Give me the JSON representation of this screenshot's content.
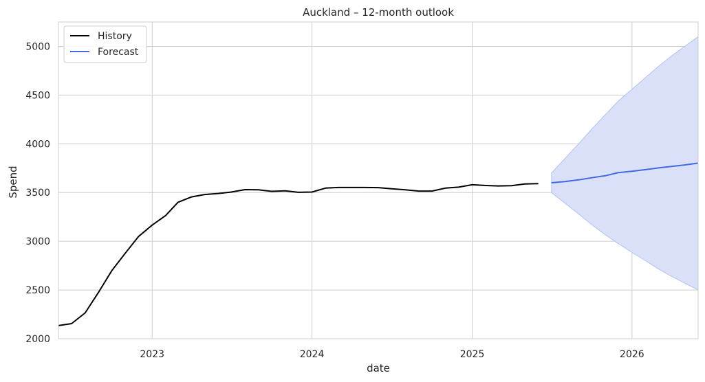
{
  "chart_data": {
    "type": "line",
    "title": "Auckland – 12-month outlook",
    "xlabel": "date",
    "ylabel": "Spend",
    "xlim": [
      "2022-06-01",
      "2026-06-01"
    ],
    "ylim": [
      2000,
      5250
    ],
    "x_ticks": [
      {
        "date": "2023-01-01",
        "label": "2023"
      },
      {
        "date": "2024-01-01",
        "label": "2024"
      },
      {
        "date": "2025-01-01",
        "label": "2025"
      },
      {
        "date": "2026-01-01",
        "label": "2026"
      }
    ],
    "y_ticks": [
      2000,
      2500,
      3000,
      3500,
      4000,
      4500,
      5000
    ],
    "grid": true,
    "legend_position": "top-left",
    "colors": {
      "history": "#000000",
      "forecast": "#4169e1",
      "band_fill": "#d9e0f8",
      "band_edge": "#b3c1f0",
      "grid": "#cccccc",
      "frame": "#cccccc"
    },
    "series": [
      {
        "name": "History",
        "points": [
          [
            "2022-06-01",
            2135
          ],
          [
            "2022-07-01",
            2155
          ],
          [
            "2022-08-01",
            2265
          ],
          [
            "2022-09-01",
            2480
          ],
          [
            "2022-10-01",
            2700
          ],
          [
            "2022-11-01",
            2880
          ],
          [
            "2022-12-01",
            3050
          ],
          [
            "2023-01-01",
            3165
          ],
          [
            "2023-02-01",
            3265
          ],
          [
            "2023-03-01",
            3400
          ],
          [
            "2023-04-01",
            3455
          ],
          [
            "2023-05-01",
            3480
          ],
          [
            "2023-06-01",
            3490
          ],
          [
            "2023-07-01",
            3505
          ],
          [
            "2023-08-01",
            3530
          ],
          [
            "2023-09-01",
            3528
          ],
          [
            "2023-10-01",
            3512
          ],
          [
            "2023-11-01",
            3518
          ],
          [
            "2023-12-01",
            3502
          ],
          [
            "2024-01-01",
            3505
          ],
          [
            "2024-02-01",
            3545
          ],
          [
            "2024-03-01",
            3552
          ],
          [
            "2024-04-01",
            3552
          ],
          [
            "2024-05-01",
            3552
          ],
          [
            "2024-06-01",
            3550
          ],
          [
            "2024-07-01",
            3538
          ],
          [
            "2024-08-01",
            3528
          ],
          [
            "2024-09-01",
            3515
          ],
          [
            "2024-10-01",
            3515
          ],
          [
            "2024-11-01",
            3545
          ],
          [
            "2024-12-01",
            3555
          ],
          [
            "2025-01-01",
            3580
          ],
          [
            "2025-02-01",
            3572
          ],
          [
            "2025-03-01",
            3568
          ],
          [
            "2025-04-01",
            3570
          ],
          [
            "2025-05-01",
            3588
          ],
          [
            "2025-06-01",
            3592
          ]
        ]
      },
      {
        "name": "Forecast",
        "points": [
          [
            "2025-07-01",
            3600
          ],
          [
            "2025-08-01",
            3612
          ],
          [
            "2025-09-01",
            3630
          ],
          [
            "2025-10-01",
            3652
          ],
          [
            "2025-11-01",
            3672
          ],
          [
            "2025-12-01",
            3705
          ],
          [
            "2026-01-01",
            3718
          ],
          [
            "2026-02-01",
            3735
          ],
          [
            "2026-03-01",
            3752
          ],
          [
            "2026-04-01",
            3768
          ],
          [
            "2026-05-01",
            3783
          ],
          [
            "2026-06-01",
            3802
          ]
        ],
        "upper": [
          3700,
          3850,
          4000,
          4150,
          4300,
          4440,
          4560,
          4680,
          4790,
          4900,
          5000,
          5100
        ],
        "lower": [
          3500,
          3390,
          3280,
          3170,
          3065,
          2975,
          2885,
          2800,
          2720,
          2640,
          2570,
          2500
        ]
      }
    ]
  }
}
